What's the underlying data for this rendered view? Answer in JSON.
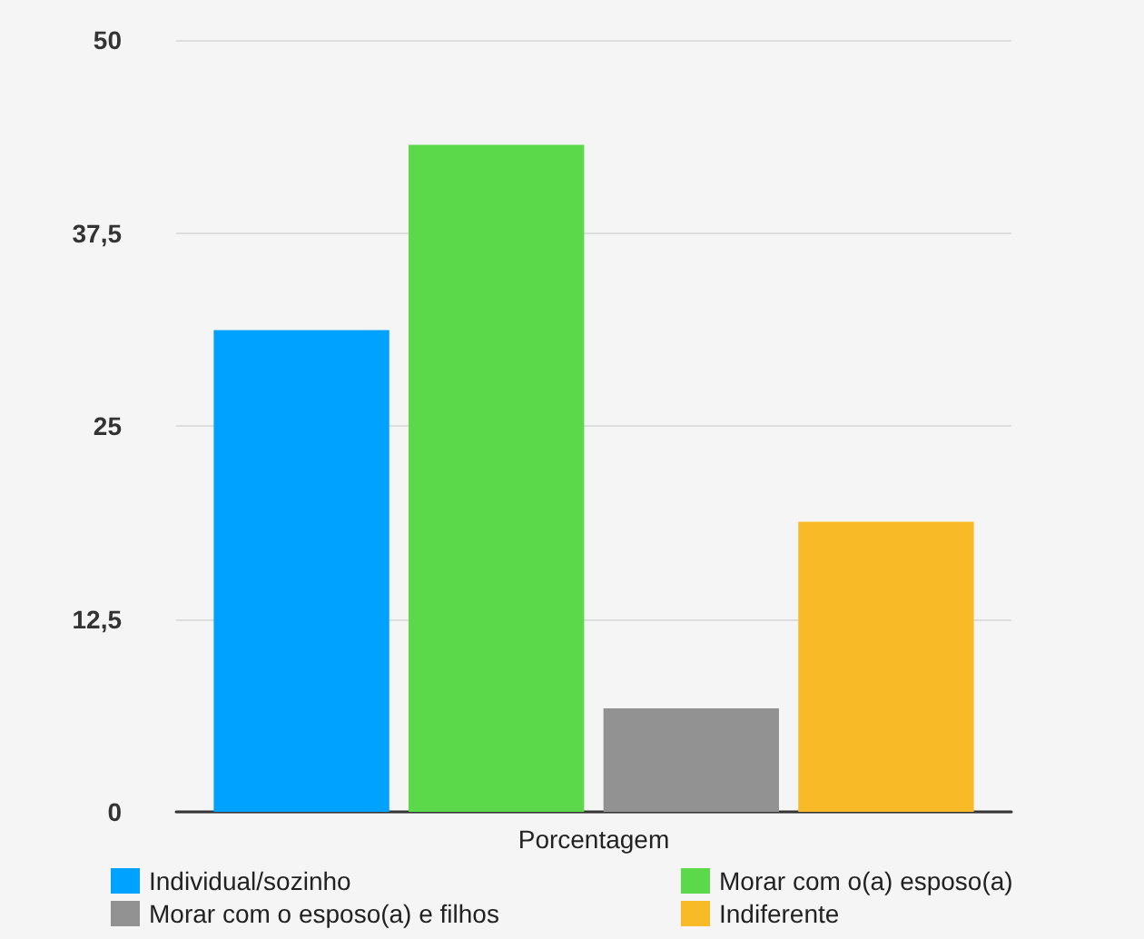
{
  "chart_data": {
    "type": "bar",
    "categories": [
      "Porcentagem"
    ],
    "series": [
      {
        "name": "Individual/sozinho",
        "color": "#00a2ff",
        "values": [
          31.2
        ]
      },
      {
        "name": "Morar com o(a) esposo(a)",
        "color": "#5bd94a",
        "values": [
          43.2
        ]
      },
      {
        "name": "Morar com o esposo(a) e filhos",
        "color": "#929292",
        "values": [
          6.7
        ]
      },
      {
        "name": "Indiferente",
        "color": "#f8ba27",
        "values": [
          18.8
        ]
      }
    ],
    "ylim": [
      0,
      50
    ],
    "yticks": [
      0,
      {
        "value": 12.5,
        "label": "12,5"
      },
      25,
      {
        "value": 37.5,
        "label": "37,5"
      },
      50
    ],
    "grid": "y",
    "legend": "bottom"
  }
}
